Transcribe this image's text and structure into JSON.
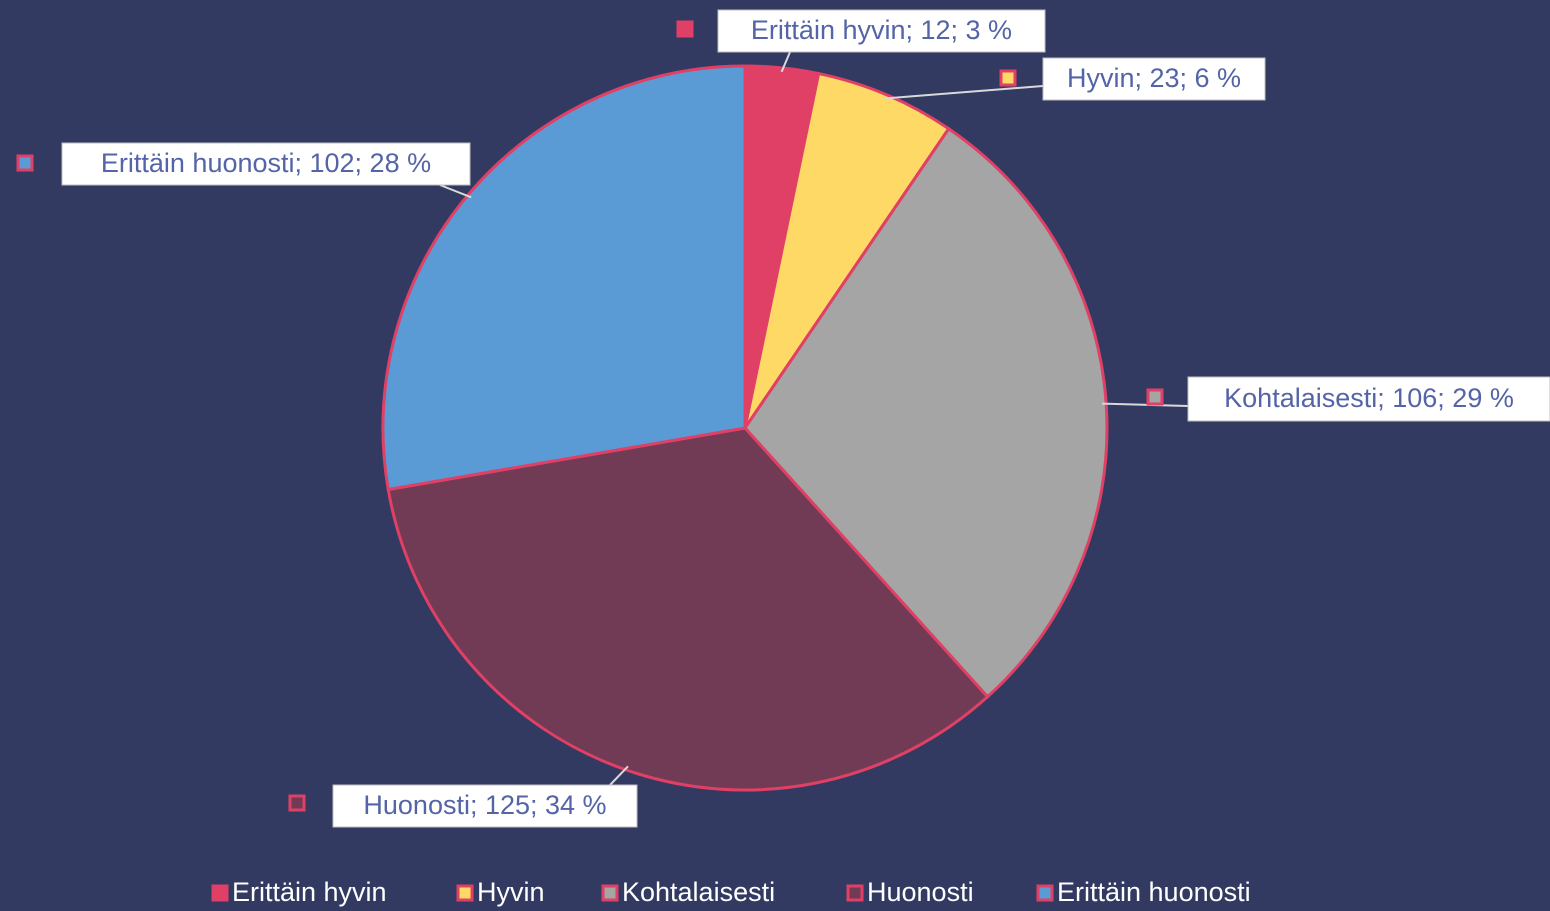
{
  "chart_data": {
    "type": "pie",
    "categories": [
      "Erittäin hyvin",
      "Hyvin",
      "Kohtalaisesti",
      "Huonosti",
      "Erittäin huonosti"
    ],
    "values": [
      12,
      23,
      106,
      125,
      102
    ],
    "value_labels": [
      "Erittäin hyvin; 12; 3 %",
      "Hyvin; 23; 6 %",
      "Kohtalaisesti; 106; 29 %",
      "Huonosti; 125; 34 %",
      "Erittäin huonosti; 102; 28 %"
    ],
    "colors": [
      "#e04065",
      "#ffd966",
      "#a5a5a5",
      "#713b55",
      "#5b9bd5"
    ],
    "legend": "bottom"
  }
}
